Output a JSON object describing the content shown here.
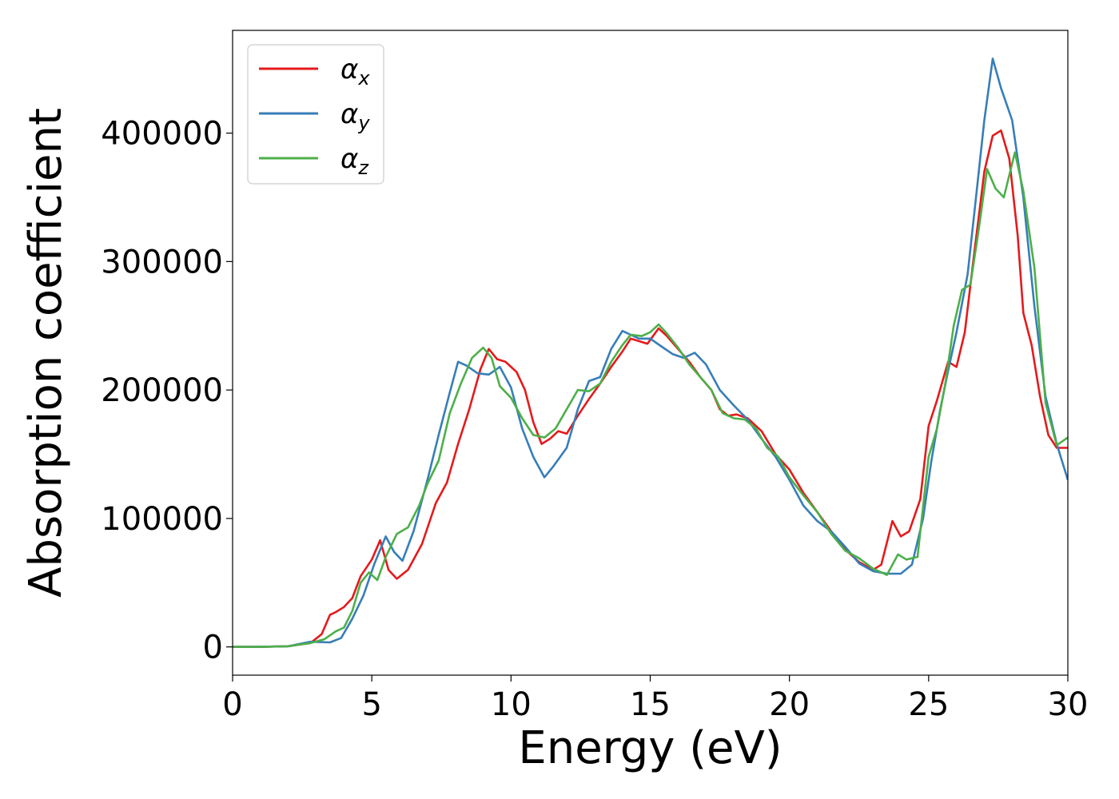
{
  "chart_data": {
    "type": "line",
    "title": "",
    "xlabel": "Energy (eV)",
    "ylabel": "Absorption coefficient",
    "xlim": [
      0,
      30
    ],
    "ylim": [
      -22000,
      480000
    ],
    "xticks": [
      0,
      5,
      10,
      15,
      20,
      25,
      30
    ],
    "yticks": [
      0,
      100000,
      200000,
      300000,
      400000
    ],
    "xtick_labels": [
      "0",
      "5",
      "10",
      "15",
      "20",
      "25",
      "30"
    ],
    "ytick_labels": [
      "0",
      "100000",
      "200000",
      "300000",
      "400000"
    ],
    "grid": false,
    "legend_position": "top-left",
    "series": [
      {
        "name": "α",
        "subscript": "x",
        "color": "#e41a1c",
        "points": [
          [
            0,
            0
          ],
          [
            1,
            0
          ],
          [
            2,
            500
          ],
          [
            2.8,
            3000
          ],
          [
            3.2,
            10000
          ],
          [
            3.5,
            25000
          ],
          [
            3.7,
            27000
          ],
          [
            4,
            31000
          ],
          [
            4.3,
            38000
          ],
          [
            4.6,
            55000
          ],
          [
            5,
            68000
          ],
          [
            5.3,
            83000
          ],
          [
            5.6,
            60000
          ],
          [
            5.9,
            53000
          ],
          [
            6.3,
            60000
          ],
          [
            6.8,
            80000
          ],
          [
            7.3,
            112000
          ],
          [
            7.7,
            128000
          ],
          [
            8.1,
            158000
          ],
          [
            8.5,
            185000
          ],
          [
            8.9,
            216000
          ],
          [
            9.2,
            232000
          ],
          [
            9.5,
            224000
          ],
          [
            9.8,
            222000
          ],
          [
            10.2,
            214000
          ],
          [
            10.5,
            200000
          ],
          [
            10.8,
            175000
          ],
          [
            11.1,
            158000
          ],
          [
            11.4,
            162000
          ],
          [
            11.7,
            168000
          ],
          [
            12,
            166000
          ],
          [
            12.4,
            180000
          ],
          [
            12.8,
            193000
          ],
          [
            13.2,
            205000
          ],
          [
            13.6,
            218000
          ],
          [
            14,
            230000
          ],
          [
            14.3,
            240000
          ],
          [
            14.6,
            238000
          ],
          [
            14.9,
            236000
          ],
          [
            15.3,
            248000
          ],
          [
            15.6,
            242000
          ],
          [
            16,
            232000
          ],
          [
            16.4,
            222000
          ],
          [
            16.8,
            210000
          ],
          [
            17.2,
            200000
          ],
          [
            17.5,
            185000
          ],
          [
            17.8,
            180000
          ],
          [
            18.1,
            181000
          ],
          [
            18.5,
            178000
          ],
          [
            19,
            168000
          ],
          [
            19.5,
            150000
          ],
          [
            20,
            138000
          ],
          [
            20.5,
            120000
          ],
          [
            21,
            105000
          ],
          [
            21.5,
            90000
          ],
          [
            22,
            76000
          ],
          [
            22.5,
            66000
          ],
          [
            23,
            60000
          ],
          [
            23.3,
            64000
          ],
          [
            23.7,
            98000
          ],
          [
            24,
            86000
          ],
          [
            24.3,
            90000
          ],
          [
            24.7,
            115000
          ],
          [
            25,
            172000
          ],
          [
            25.3,
            192000
          ],
          [
            25.7,
            222000
          ],
          [
            26,
            218000
          ],
          [
            26.3,
            245000
          ],
          [
            26.6,
            300000
          ],
          [
            27,
            370000
          ],
          [
            27.3,
            398000
          ],
          [
            27.6,
            402000
          ],
          [
            27.9,
            380000
          ],
          [
            28.2,
            320000
          ],
          [
            28.4,
            260000
          ],
          [
            28.7,
            235000
          ],
          [
            29,
            195000
          ],
          [
            29.3,
            165000
          ],
          [
            29.6,
            155000
          ],
          [
            30,
            155000
          ]
        ]
      },
      {
        "name": "α",
        "subscript": "y",
        "color": "#377eb8",
        "points": [
          [
            0,
            0
          ],
          [
            1,
            0
          ],
          [
            2,
            500
          ],
          [
            2.8,
            4000
          ],
          [
            3.5,
            3500
          ],
          [
            3.9,
            7000
          ],
          [
            4.3,
            22000
          ],
          [
            4.7,
            40000
          ],
          [
            5.1,
            65000
          ],
          [
            5.5,
            86000
          ],
          [
            5.8,
            74000
          ],
          [
            6.1,
            67000
          ],
          [
            6.5,
            90000
          ],
          [
            7,
            130000
          ],
          [
            7.4,
            165000
          ],
          [
            7.8,
            198000
          ],
          [
            8.1,
            222000
          ],
          [
            8.4,
            219000
          ],
          [
            8.8,
            213000
          ],
          [
            9.2,
            212000
          ],
          [
            9.6,
            218000
          ],
          [
            10,
            202000
          ],
          [
            10.4,
            170000
          ],
          [
            10.8,
            148000
          ],
          [
            11.2,
            132000
          ],
          [
            11.5,
            140000
          ],
          [
            12,
            155000
          ],
          [
            12.4,
            185000
          ],
          [
            12.8,
            207000
          ],
          [
            13.2,
            210000
          ],
          [
            13.6,
            232000
          ],
          [
            14,
            246000
          ],
          [
            14.3,
            243000
          ],
          [
            14.6,
            240000
          ],
          [
            15,
            240000
          ],
          [
            15.4,
            234000
          ],
          [
            15.8,
            228000
          ],
          [
            16.2,
            225000
          ],
          [
            16.6,
            229000
          ],
          [
            17,
            220000
          ],
          [
            17.5,
            200000
          ],
          [
            18,
            188000
          ],
          [
            18.5,
            177000
          ],
          [
            19,
            162000
          ],
          [
            19.5,
            148000
          ],
          [
            20,
            130000
          ],
          [
            20.5,
            110000
          ],
          [
            21,
            98000
          ],
          [
            21.5,
            90000
          ],
          [
            22,
            78000
          ],
          [
            22.5,
            65000
          ],
          [
            23,
            59000
          ],
          [
            23.5,
            57000
          ],
          [
            24,
            57000
          ],
          [
            24.4,
            64000
          ],
          [
            24.8,
            100000
          ],
          [
            25.1,
            145000
          ],
          [
            25.4,
            183000
          ],
          [
            25.7,
            215000
          ],
          [
            26,
            245000
          ],
          [
            26.4,
            290000
          ],
          [
            26.7,
            350000
          ],
          [
            27,
            410000
          ],
          [
            27.3,
            458000
          ],
          [
            27.6,
            435000
          ],
          [
            28,
            410000
          ],
          [
            28.4,
            350000
          ],
          [
            28.8,
            265000
          ],
          [
            29.2,
            195000
          ],
          [
            29.6,
            158000
          ],
          [
            30,
            130000
          ]
        ]
      },
      {
        "name": "α",
        "subscript": "z",
        "color": "#4daf4a",
        "points": [
          [
            0,
            0
          ],
          [
            1,
            0
          ],
          [
            2,
            500
          ],
          [
            2.8,
            3000
          ],
          [
            3.3,
            6000
          ],
          [
            3.7,
            12000
          ],
          [
            4,
            15000
          ],
          [
            4.3,
            28000
          ],
          [
            4.6,
            50000
          ],
          [
            4.9,
            58000
          ],
          [
            5.2,
            52000
          ],
          [
            5.5,
            70000
          ],
          [
            5.9,
            88000
          ],
          [
            6.3,
            93000
          ],
          [
            6.7,
            110000
          ],
          [
            7,
            127000
          ],
          [
            7.4,
            145000
          ],
          [
            7.8,
            182000
          ],
          [
            8.2,
            205000
          ],
          [
            8.6,
            225000
          ],
          [
            9,
            233000
          ],
          [
            9.3,
            225000
          ],
          [
            9.6,
            203000
          ],
          [
            10,
            194000
          ],
          [
            10.4,
            178000
          ],
          [
            10.8,
            165000
          ],
          [
            11.2,
            163000
          ],
          [
            11.6,
            170000
          ],
          [
            12,
            185000
          ],
          [
            12.4,
            200000
          ],
          [
            12.8,
            199000
          ],
          [
            13.2,
            205000
          ],
          [
            13.6,
            222000
          ],
          [
            14,
            235000
          ],
          [
            14.3,
            243000
          ],
          [
            14.7,
            242000
          ],
          [
            15,
            245000
          ],
          [
            15.3,
            251000
          ],
          [
            15.6,
            244000
          ],
          [
            16,
            233000
          ],
          [
            16.4,
            220000
          ],
          [
            16.8,
            210000
          ],
          [
            17.2,
            200000
          ],
          [
            17.6,
            182000
          ],
          [
            18,
            178000
          ],
          [
            18.4,
            177000
          ],
          [
            18.8,
            170000
          ],
          [
            19.2,
            155000
          ],
          [
            19.6,
            148000
          ],
          [
            20,
            132000
          ],
          [
            20.5,
            118000
          ],
          [
            21,
            105000
          ],
          [
            21.5,
            88000
          ],
          [
            22,
            75000
          ],
          [
            22.5,
            69000
          ],
          [
            23,
            61000
          ],
          [
            23.5,
            56000
          ],
          [
            23.9,
            72000
          ],
          [
            24.2,
            68000
          ],
          [
            24.6,
            70000
          ],
          [
            25,
            148000
          ],
          [
            25.3,
            170000
          ],
          [
            25.6,
            205000
          ],
          [
            25.9,
            250000
          ],
          [
            26.2,
            278000
          ],
          [
            26.5,
            282000
          ],
          [
            26.8,
            325000
          ],
          [
            27.1,
            372000
          ],
          [
            27.4,
            357000
          ],
          [
            27.7,
            350000
          ],
          [
            28.1,
            385000
          ],
          [
            28.4,
            355000
          ],
          [
            28.8,
            295000
          ],
          [
            29.2,
            190000
          ],
          [
            29.6,
            157000
          ],
          [
            30,
            163000
          ]
        ]
      }
    ]
  }
}
